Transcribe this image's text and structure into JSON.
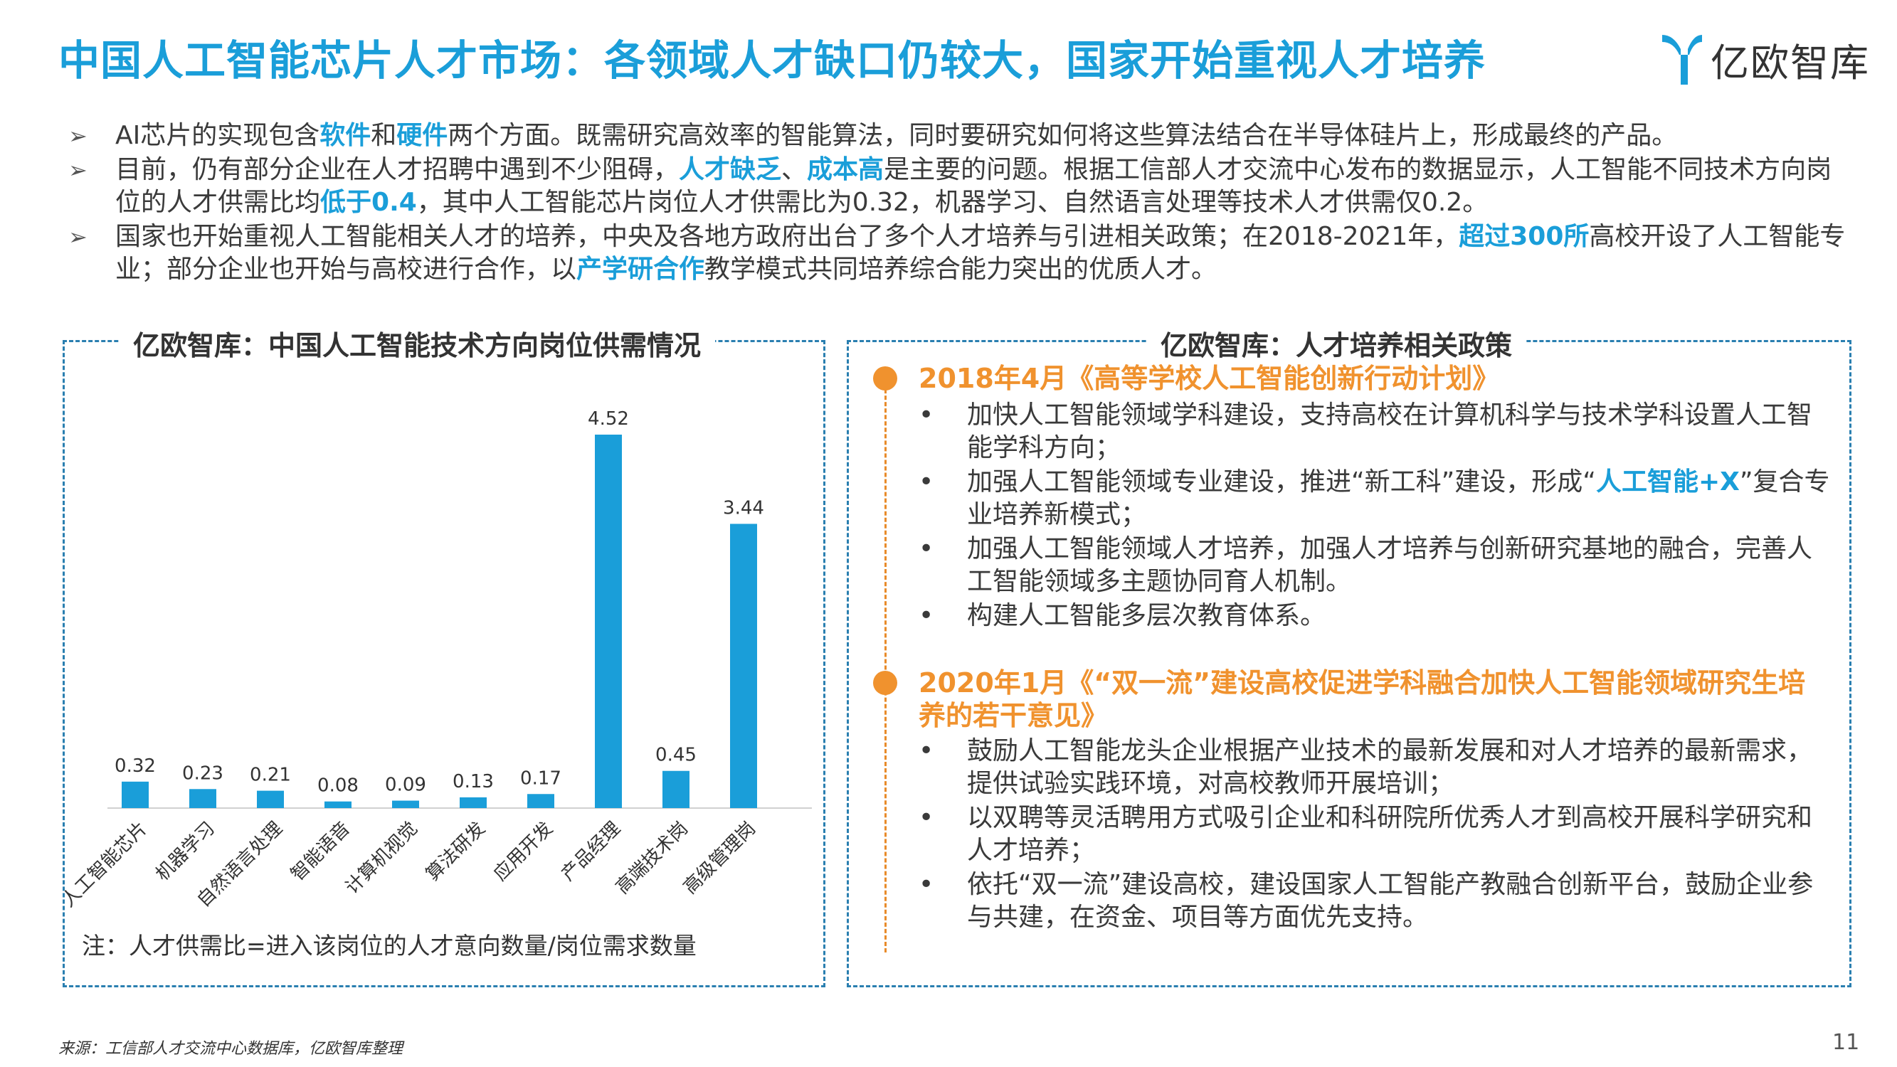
{
  "header": {
    "title": "中国人工智能芯片人才市场：各领域人才缺口仍较大，国家开始重视人才培养",
    "logo_text": "亿欧智库",
    "logo_color": "#1a9ed9"
  },
  "bullets": [
    {
      "parts": [
        {
          "t": "AI芯片的实现包含"
        },
        {
          "t": "软件",
          "h": true
        },
        {
          "t": "和"
        },
        {
          "t": "硬件",
          "h": true
        },
        {
          "t": "两个方面。既需研究高效率的智能算法，同时要研究如何将这些算法结合在半导体硅片上，形成最终的产品。"
        }
      ]
    },
    {
      "parts": [
        {
          "t": "目前，仍有部分企业在人才招聘中遇到不少阻碍，"
        },
        {
          "t": "人才缺乏",
          "h": true
        },
        {
          "t": "、"
        },
        {
          "t": "成本高",
          "h": true
        },
        {
          "t": "是主要的问题。根据工信部人才交流中心发布的数据显示，人工智能不同技术方向岗位的人才供需比均"
        },
        {
          "t": "低于0.4",
          "h": true
        },
        {
          "t": "，其中人工智能芯片岗位人才供需比为0.32，机器学习、自然语言处理等技术人才供需仅0.2。"
        }
      ]
    },
    {
      "parts": [
        {
          "t": "国家也开始重视人工智能相关人才的培养，中央及各地方政府出台了多个人才培养与引进相关政策；在2018-2021年，"
        },
        {
          "t": "超过300所",
          "h": true
        },
        {
          "t": "高校开设了人工智能专业；部分企业也开始与高校进行合作，以"
        },
        {
          "t": "产学研合作",
          "h": true
        },
        {
          "t": "教学模式共同培养综合能力突出的优质人才。"
        }
      ]
    }
  ],
  "left_panel": {
    "title": "亿欧智库：中国人工智能技术方向岗位供需情况",
    "note": "注：人才供需比=进入该岗位的人才意向数量/岗位需求数量"
  },
  "chart_data": {
    "type": "bar",
    "categories": [
      "人工智能芯片",
      "机器学习",
      "自然语言处理",
      "智能语音",
      "计算机视觉",
      "算法研发",
      "应用开发",
      "产品经理",
      "高端技术岗",
      "高级管理岗"
    ],
    "values": [
      0.32,
      0.23,
      0.21,
      0.08,
      0.09,
      0.13,
      0.17,
      4.52,
      0.45,
      3.44
    ],
    "bar_color": "#1a9ed9",
    "ylim": [
      0,
      5
    ],
    "grid": false,
    "data_labels": true
  },
  "right_panel": {
    "title": "亿欧智库：人才培养相关政策",
    "accent_color": "#f0922e",
    "policies": [
      {
        "heading": "2018年4月《高等学校人工智能创新行动计划》",
        "items": [
          [
            {
              "t": "加快人工智能领域学科建设，支持高校在计算机科学与技术学科设置人工智能学科方向；"
            }
          ],
          [
            {
              "t": "加强人工智能领域专业建设，推进“新工科”建设，形成“"
            },
            {
              "t": "人工智能+X",
              "h": true
            },
            {
              "t": "”复合专业培养新模式；"
            }
          ],
          [
            {
              "t": "加强人工智能领域人才培养，加强人才培养与创新研究基地的融合，完善人工智能领域多主题协同育人机制。"
            }
          ],
          [
            {
              "t": "构建人工智能多层次教育体系。"
            }
          ]
        ]
      },
      {
        "heading": "2020年1月《“双一流”建设高校促进学科融合加快人工智能领域研究生培养的若干意见》",
        "items": [
          [
            {
              "t": "鼓励人工智能龙头企业根据产业技术的最新发展和对人才培养的最新需求，提供试验实践环境，对高校教师开展培训；"
            }
          ],
          [
            {
              "t": "以双聘等灵活聘用方式吸引企业和科研院所优秀人才到高校开展科学研究和人才培养；"
            }
          ],
          [
            {
              "t": "依托“双一流”建设高校，建设国家人工智能产教融合创新平台，鼓励企业参与共建，在资金、项目等方面优先支持。"
            }
          ]
        ]
      }
    ]
  },
  "footer": {
    "source": "来源：工信部人才交流中心数据库，亿欧智库整理",
    "page_number": "11"
  }
}
